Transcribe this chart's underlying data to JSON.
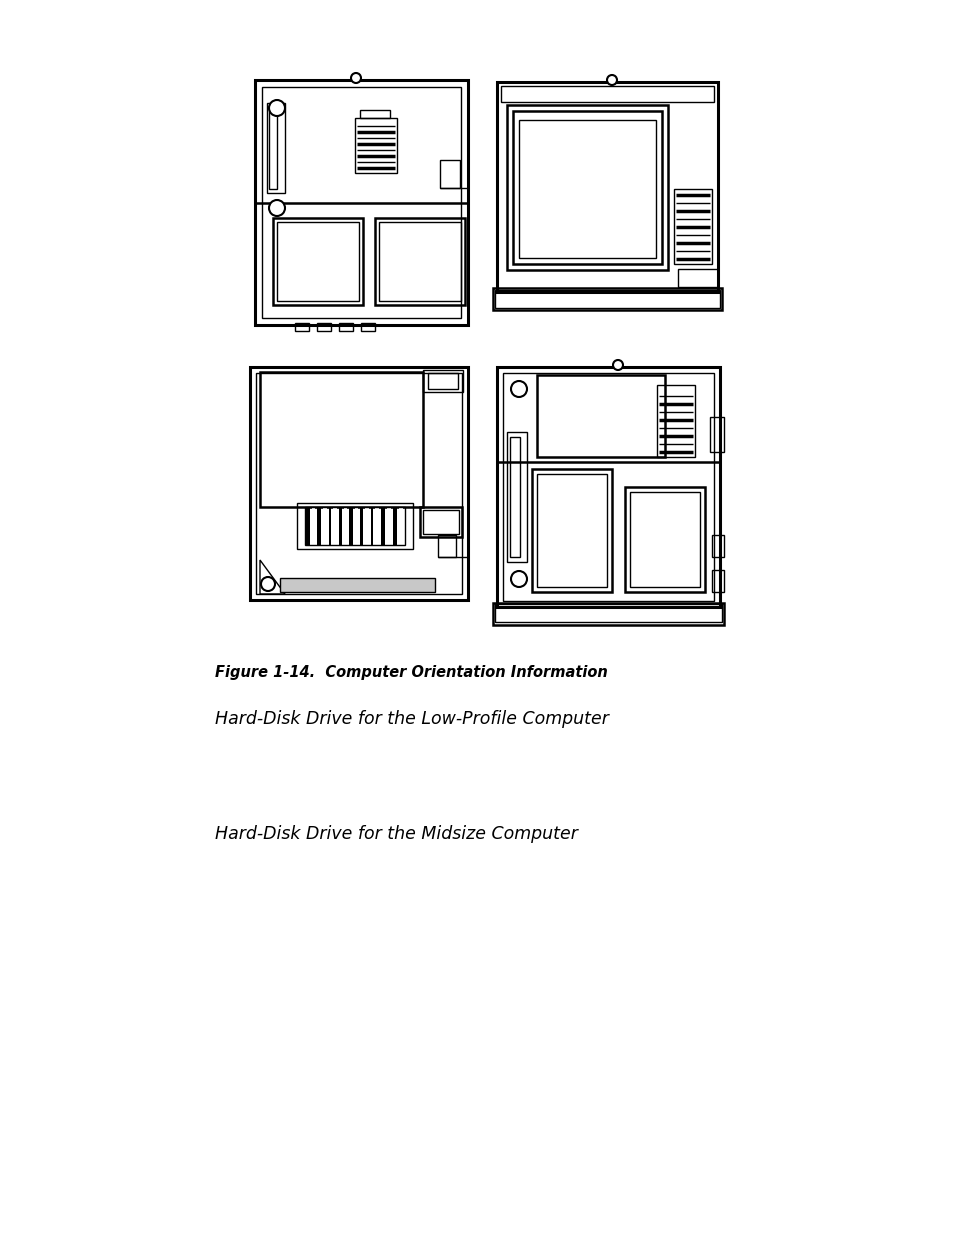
{
  "background_color": "#ffffff",
  "figure_caption": "Figure 1-14.  Computer Orientation Information",
  "label1": "Hard-Disk Drive for the Low-Profile Computer",
  "label2": "Hard-Disk Drive for the Midsize Computer",
  "caption_fontsize": 10.5,
  "label_fontsize": 12.5
}
